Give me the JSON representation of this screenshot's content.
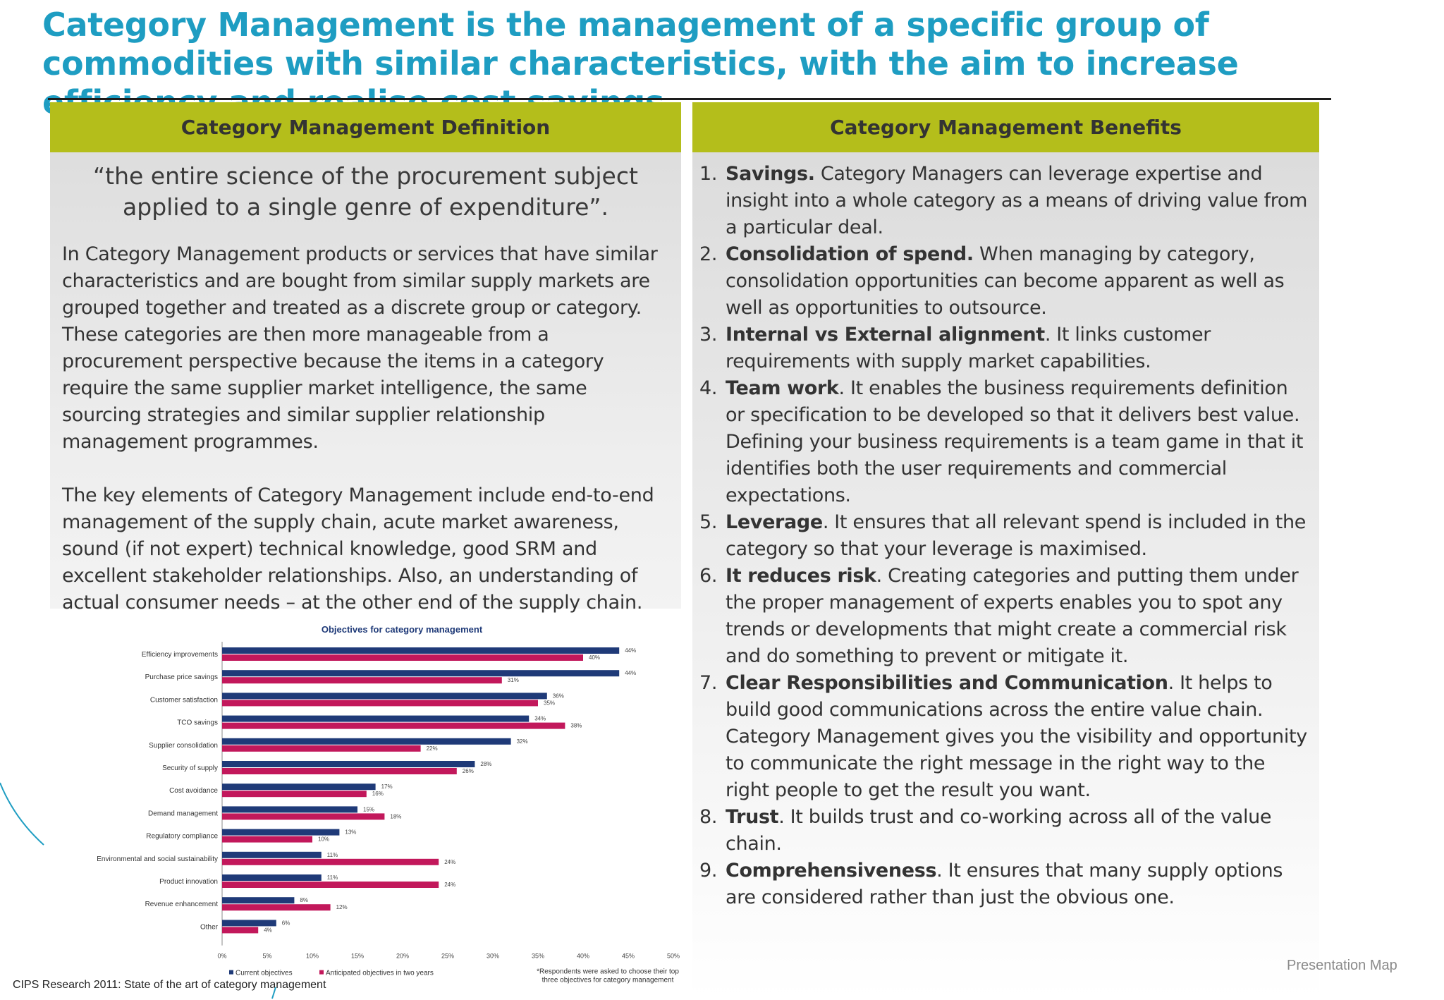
{
  "slide": {
    "title": "Category Management is the management of a specific group of commodities with similar characteristics, with the aim to increase efficiency and realise cost savings",
    "footer_label": "Presentation Map",
    "source": "CIPS Research 2011: State of the art of category management"
  },
  "definition_panel": {
    "header": "Category Management Definition",
    "quote": "“the entire science of the procurement subject applied to a single genre of expenditure”.",
    "paragraph1": "In Category Management products or services that have similar characteristics and are bought from similar supply markets are grouped together and treated as a discrete group or category. These categories are then more manageable from a procurement perspective because the items in a category require the same supplier market intelligence, the same sourcing strategies and similar supplier relationship management programmes.",
    "paragraph2": "The key elements of Category Management include end-to-end management of the supply chain, acute market awareness, sound (if not expert) technical knowledge, good SRM and excellent stakeholder relationships. Also, an understanding of actual consumer needs – at the other end of the supply chain."
  },
  "benefits_panel": {
    "header": "Category Management  Benefits",
    "items": [
      {
        "num": "1.",
        "title": "Savings.",
        "text": " Category Managers can leverage expertise and insight into a whole category as a means of driving value from a particular deal."
      },
      {
        "num": "2.",
        "title": "Consolidation of spend.",
        "text": " When managing by category, consolidation opportunities can become apparent as well as well as opportunities to outsource."
      },
      {
        "num": "3.",
        "title": "Internal vs External alignment",
        "text": ". It links customer requirements with supply market capabilities."
      },
      {
        "num": "4.",
        "title": "Team work",
        "text": ". It enables the business requirements definition or specification to be developed so that it delivers best value. Defining your business requirements is a team game in that it identifies both the user requirements and commercial expectations."
      },
      {
        "num": "5.",
        "title": "Leverage",
        "text": ". It ensures that all relevant spend is included in the category so that your leverage is maximised."
      },
      {
        "num": "6.",
        "title": "It reduces risk",
        "text": ". Creating categories and putting them under the proper management of experts enables you to spot any trends or developments that might create a commercial risk and do something to prevent or mitigate it."
      },
      {
        "num": "7.",
        "title": "Clear Responsibilities and Communication",
        "text": ". It helps to build good communications across the entire value chain. Category Management gives you the visibility and opportunity to communicate the right message in the right way to the right people to get the result you want."
      },
      {
        "num": "8.",
        "title": "Trust",
        "text": ". It builds trust and co-working across all of the value chain."
      },
      {
        "num": "9.",
        "title": "Comprehensiveness",
        "text": ". It ensures that many supply options are considered rather than just the obvious one."
      }
    ]
  },
  "chart_data": {
    "type": "bar",
    "orientation": "horizontal",
    "title": "Objectives for category management",
    "categories": [
      "Efficiency improvements",
      "Purchase price savings",
      "Customer satisfaction",
      "TCO savings",
      "Supplier consolidation",
      "Security of supply",
      "Cost avoidance",
      "Demand management",
      "Regulatory compliance",
      "Environmental and social sustainability",
      "Product innovation",
      "Revenue enhancement",
      "Other"
    ],
    "series": [
      {
        "name": "Current objectives",
        "color": "#1f3a78",
        "values": [
          44,
          44,
          36,
          34,
          32,
          28,
          17,
          15,
          13,
          11,
          11,
          8,
          6
        ]
      },
      {
        "name": "Anticipated objectives in two years",
        "color": "#c2185b",
        "values": [
          40,
          31,
          35,
          38,
          22,
          26,
          16,
          18,
          10,
          24,
          24,
          12,
          4
        ]
      }
    ],
    "xlim": [
      0,
      50
    ],
    "xticks": [
      "0%",
      "5%",
      "10%",
      "15%",
      "20%",
      "25%",
      "30%",
      "35%",
      "40%",
      "45%",
      "50%"
    ],
    "value_suffix": "%",
    "footnote": "*Respondents were asked to choose their top three objectives for category management",
    "legend_position": "bottom"
  }
}
